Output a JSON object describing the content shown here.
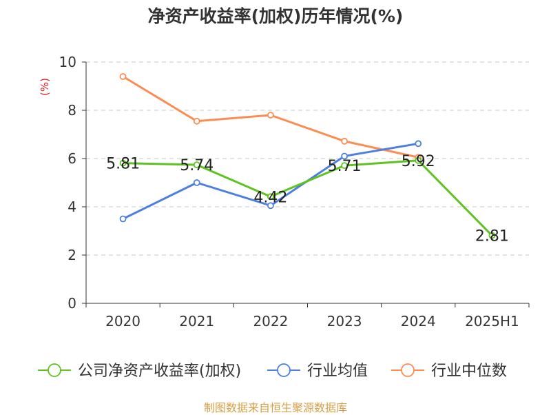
{
  "chart_data": {
    "type": "line",
    "title": "净资产收益率(加权)历年情况(%)",
    "ylabel": "(%)",
    "xlabel": "",
    "categories": [
      "2020",
      "2021",
      "2022",
      "2023",
      "2024",
      "2025H1"
    ],
    "ylim": [
      0,
      10
    ],
    "yticks": [
      0,
      2,
      4,
      6,
      8,
      10
    ],
    "grid": true,
    "legend_position": "bottom",
    "series": [
      {
        "name": "公司净资产收益率(加权)",
        "color": "#5ec320",
        "values": [
          5.81,
          5.74,
          4.42,
          5.71,
          5.92,
          2.81
        ],
        "data_labels": [
          "5.81",
          "5.74",
          "4.42",
          "5.71",
          "5.92",
          "2.81"
        ]
      },
      {
        "name": "行业均值",
        "color": "#4d7fe0",
        "values": [
          3.5,
          5.0,
          4.05,
          6.1,
          6.62,
          null
        ]
      },
      {
        "name": "行业中位数",
        "color": "#fd8c53",
        "values": [
          9.4,
          7.55,
          7.8,
          6.72,
          6.05,
          null
        ]
      }
    ],
    "ylabel_color": "#e02020"
  },
  "footer": {
    "source": "制图数据来自恒生聚源数据库",
    "source_color": "#d6a048"
  }
}
